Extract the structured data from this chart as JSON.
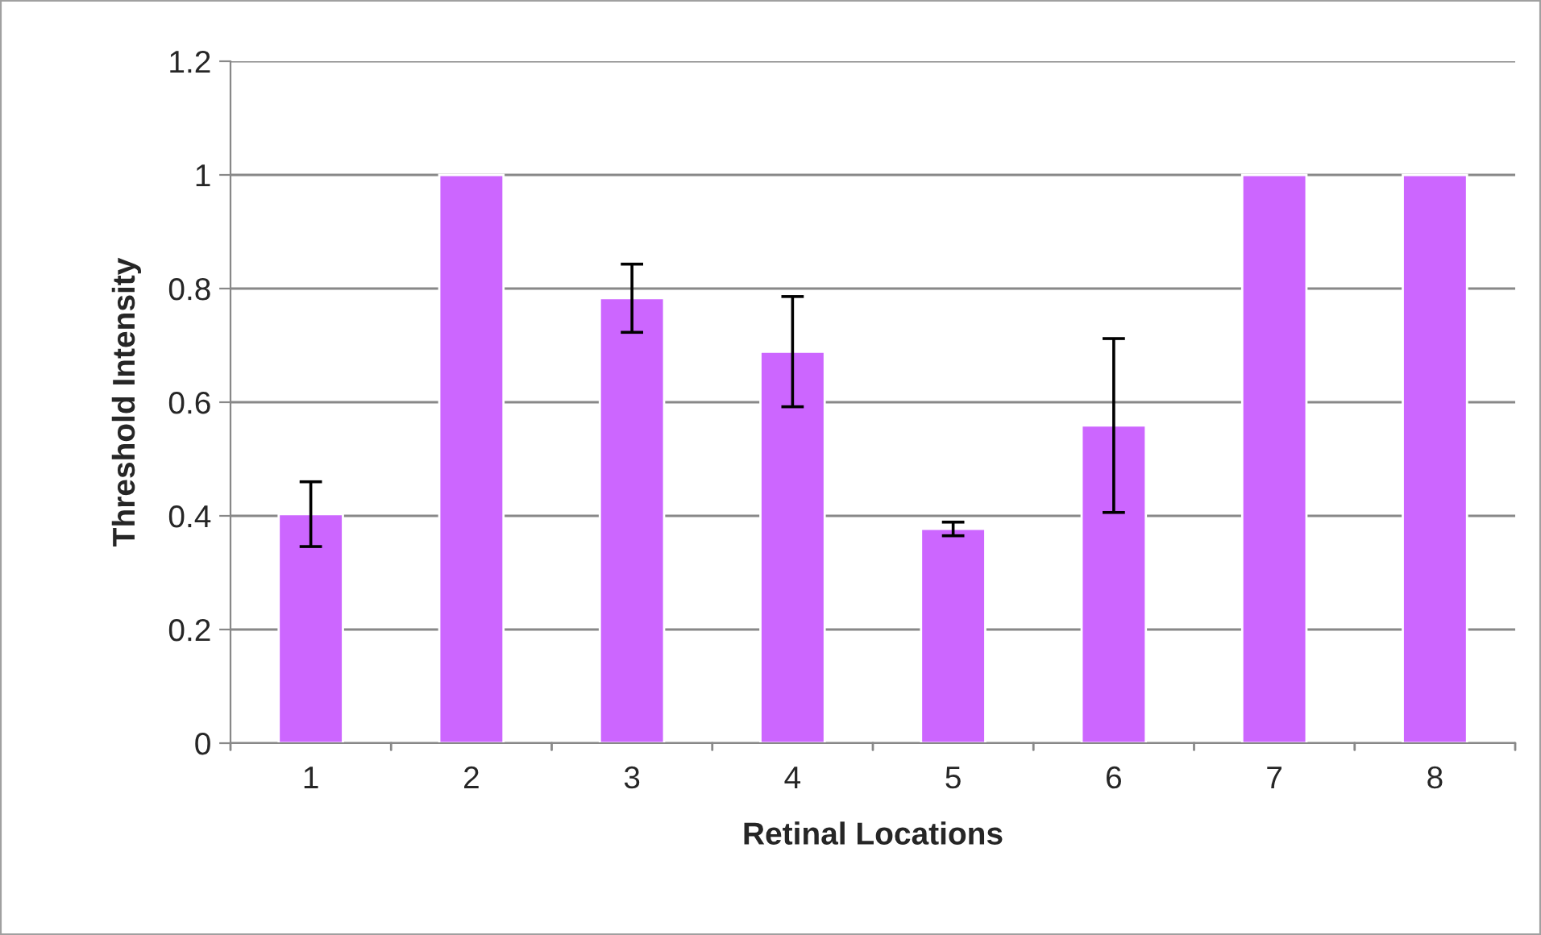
{
  "chart_data": {
    "type": "bar",
    "xlabel": "Retinal Locations",
    "ylabel": "Threshold Intensity",
    "categories": [
      "1",
      "2",
      "3",
      "4",
      "5",
      "6",
      "7",
      "8"
    ],
    "values": [
      0.403,
      1,
      0.783,
      0.689,
      0.377,
      0.559,
      1,
      1
    ],
    "errors": [
      0.057,
      null,
      0.06,
      0.097,
      0.012,
      0.153,
      null,
      null
    ],
    "color": "#cc66ff",
    "ylim": [
      0,
      1.2
    ],
    "yticks": [
      0,
      0.2,
      0.4,
      0.6,
      0.8,
      1,
      1.2
    ],
    "grid": "y",
    "legend": false
  }
}
